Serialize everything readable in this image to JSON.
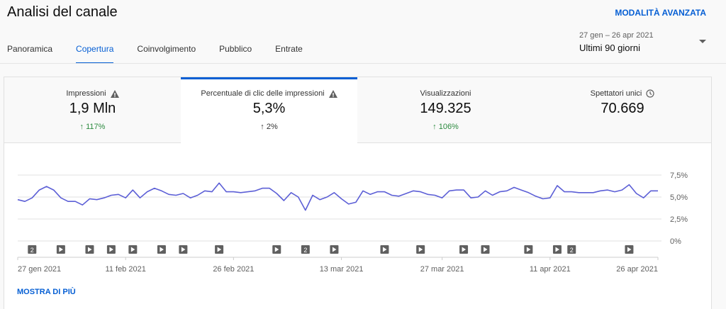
{
  "header": {
    "title": "Analisi del canale",
    "advanced_mode": "MODALITÀ AVANZATA"
  },
  "tabs": [
    "Panoramica",
    "Copertura",
    "Coinvolgimento",
    "Pubblico",
    "Entrate"
  ],
  "date_range": {
    "dates": "27 gen – 26 apr 2021",
    "period": "Ultimi 90 giorni"
  },
  "metrics": [
    {
      "label": "Impressioni",
      "value": "1,9 Mln",
      "change": "117%"
    },
    {
      "label": "Percentuale di clic delle impressioni",
      "value": "5,3%",
      "change": "2%"
    },
    {
      "label": "Visualizzazioni",
      "value": "149.325",
      "change": "106%"
    },
    {
      "label": "Spettatori unici",
      "value": "70.669"
    }
  ],
  "chart_data": {
    "type": "line",
    "color": "#5c5fd6",
    "grid": true,
    "xlim": [
      "2021-01-27",
      "2021-04-26"
    ],
    "x": [
      "2021-01-27",
      "2021-01-28",
      "2021-01-29",
      "2021-01-30",
      "2021-01-31",
      "2021-02-01",
      "2021-02-02",
      "2021-02-03",
      "2021-02-04",
      "2021-02-05",
      "2021-02-06",
      "2021-02-07",
      "2021-02-08",
      "2021-02-09",
      "2021-02-10",
      "2021-02-11",
      "2021-02-12",
      "2021-02-13",
      "2021-02-14",
      "2021-02-15",
      "2021-02-16",
      "2021-02-17",
      "2021-02-18",
      "2021-02-19",
      "2021-02-20",
      "2021-02-21",
      "2021-02-22",
      "2021-02-23",
      "2021-02-24",
      "2021-02-25",
      "2021-02-26",
      "2021-02-27",
      "2021-02-28",
      "2021-03-01",
      "2021-03-02",
      "2021-03-03",
      "2021-03-04",
      "2021-03-05",
      "2021-03-06",
      "2021-03-07",
      "2021-03-08",
      "2021-03-09",
      "2021-03-10",
      "2021-03-11",
      "2021-03-12",
      "2021-03-13",
      "2021-03-14",
      "2021-03-15",
      "2021-03-16",
      "2021-03-17",
      "2021-03-18",
      "2021-03-19",
      "2021-03-20",
      "2021-03-21",
      "2021-03-22",
      "2021-03-23",
      "2021-03-24",
      "2021-03-25",
      "2021-03-26",
      "2021-03-27",
      "2021-03-28",
      "2021-03-29",
      "2021-03-30",
      "2021-03-31",
      "2021-04-01",
      "2021-04-02",
      "2021-04-03",
      "2021-04-04",
      "2021-04-05",
      "2021-04-06",
      "2021-04-07",
      "2021-04-08",
      "2021-04-09",
      "2021-04-10",
      "2021-04-11",
      "2021-04-12",
      "2021-04-13",
      "2021-04-14",
      "2021-04-15",
      "2021-04-16",
      "2021-04-17",
      "2021-04-18",
      "2021-04-19",
      "2021-04-20",
      "2021-04-21",
      "2021-04-22",
      "2021-04-23",
      "2021-04-24",
      "2021-04-25",
      "2021-04-26"
    ],
    "values": [
      4.7,
      4.5,
      4.9,
      5.8,
      6.2,
      5.8,
      4.9,
      4.5,
      4.5,
      4.1,
      4.8,
      4.7,
      4.9,
      5.2,
      5.3,
      4.9,
      5.8,
      4.9,
      5.6,
      6.0,
      5.7,
      5.3,
      5.2,
      5.4,
      4.9,
      5.2,
      5.7,
      5.6,
      6.6,
      5.6,
      5.6,
      5.5,
      5.6,
      5.7,
      6.0,
      6.0,
      5.4,
      4.6,
      5.5,
      5.0,
      3.5,
      5.2,
      4.7,
      5.0,
      5.5,
      4.8,
      4.2,
      4.4,
      5.7,
      5.3,
      5.6,
      5.6,
      5.2,
      5.1,
      5.4,
      5.7,
      5.6,
      5.3,
      5.2,
      4.9,
      5.7,
      5.8,
      5.8,
      4.9,
      5.0,
      5.7,
      5.2,
      5.6,
      5.7,
      6.1,
      5.8,
      5.5,
      5.1,
      4.8,
      4.9,
      6.3,
      5.6,
      5.6,
      5.5,
      5.5,
      5.5,
      5.7,
      5.8,
      5.6,
      5.8,
      6.4,
      5.4,
      4.9,
      5.7,
      5.7
    ],
    "ylim": [
      0,
      7.5
    ],
    "yticks": [
      {
        "value": 0,
        "label": "0%"
      },
      {
        "value": 2.5,
        "label": "2,5%"
      },
      {
        "value": 5,
        "label": "5,0%"
      },
      {
        "value": 7.5,
        "label": "7,5%"
      }
    ],
    "xticks": [
      {
        "value": "2021-01-27",
        "label": "27 gen 2021"
      },
      {
        "value": "2021-02-11",
        "label": "11 feb 2021"
      },
      {
        "value": "2021-02-26",
        "label": "26 feb 2021"
      },
      {
        "value": "2021-03-13",
        "label": "13 mar 2021"
      },
      {
        "value": "2021-03-27",
        "label": "27 mar 2021"
      },
      {
        "value": "2021-04-11",
        "label": "11 apr 2021"
      },
      {
        "value": "2021-04-26",
        "label": "26 apr 2021"
      }
    ],
    "events": [
      {
        "x": "2021-01-29",
        "label": "2"
      },
      {
        "x": "2021-02-02"
      },
      {
        "x": "2021-02-06"
      },
      {
        "x": "2021-02-09"
      },
      {
        "x": "2021-02-12"
      },
      {
        "x": "2021-02-16"
      },
      {
        "x": "2021-02-19"
      },
      {
        "x": "2021-02-24"
      },
      {
        "x": "2021-03-04"
      },
      {
        "x": "2021-03-08",
        "label": "2"
      },
      {
        "x": "2021-03-12"
      },
      {
        "x": "2021-03-19"
      },
      {
        "x": "2021-03-24"
      },
      {
        "x": "2021-03-30"
      },
      {
        "x": "2021-04-02"
      },
      {
        "x": "2021-04-08"
      },
      {
        "x": "2021-04-12"
      },
      {
        "x": "2021-04-14",
        "label": "2"
      },
      {
        "x": "2021-04-22"
      }
    ]
  },
  "show_more": "MOSTRA DI PIÙ"
}
